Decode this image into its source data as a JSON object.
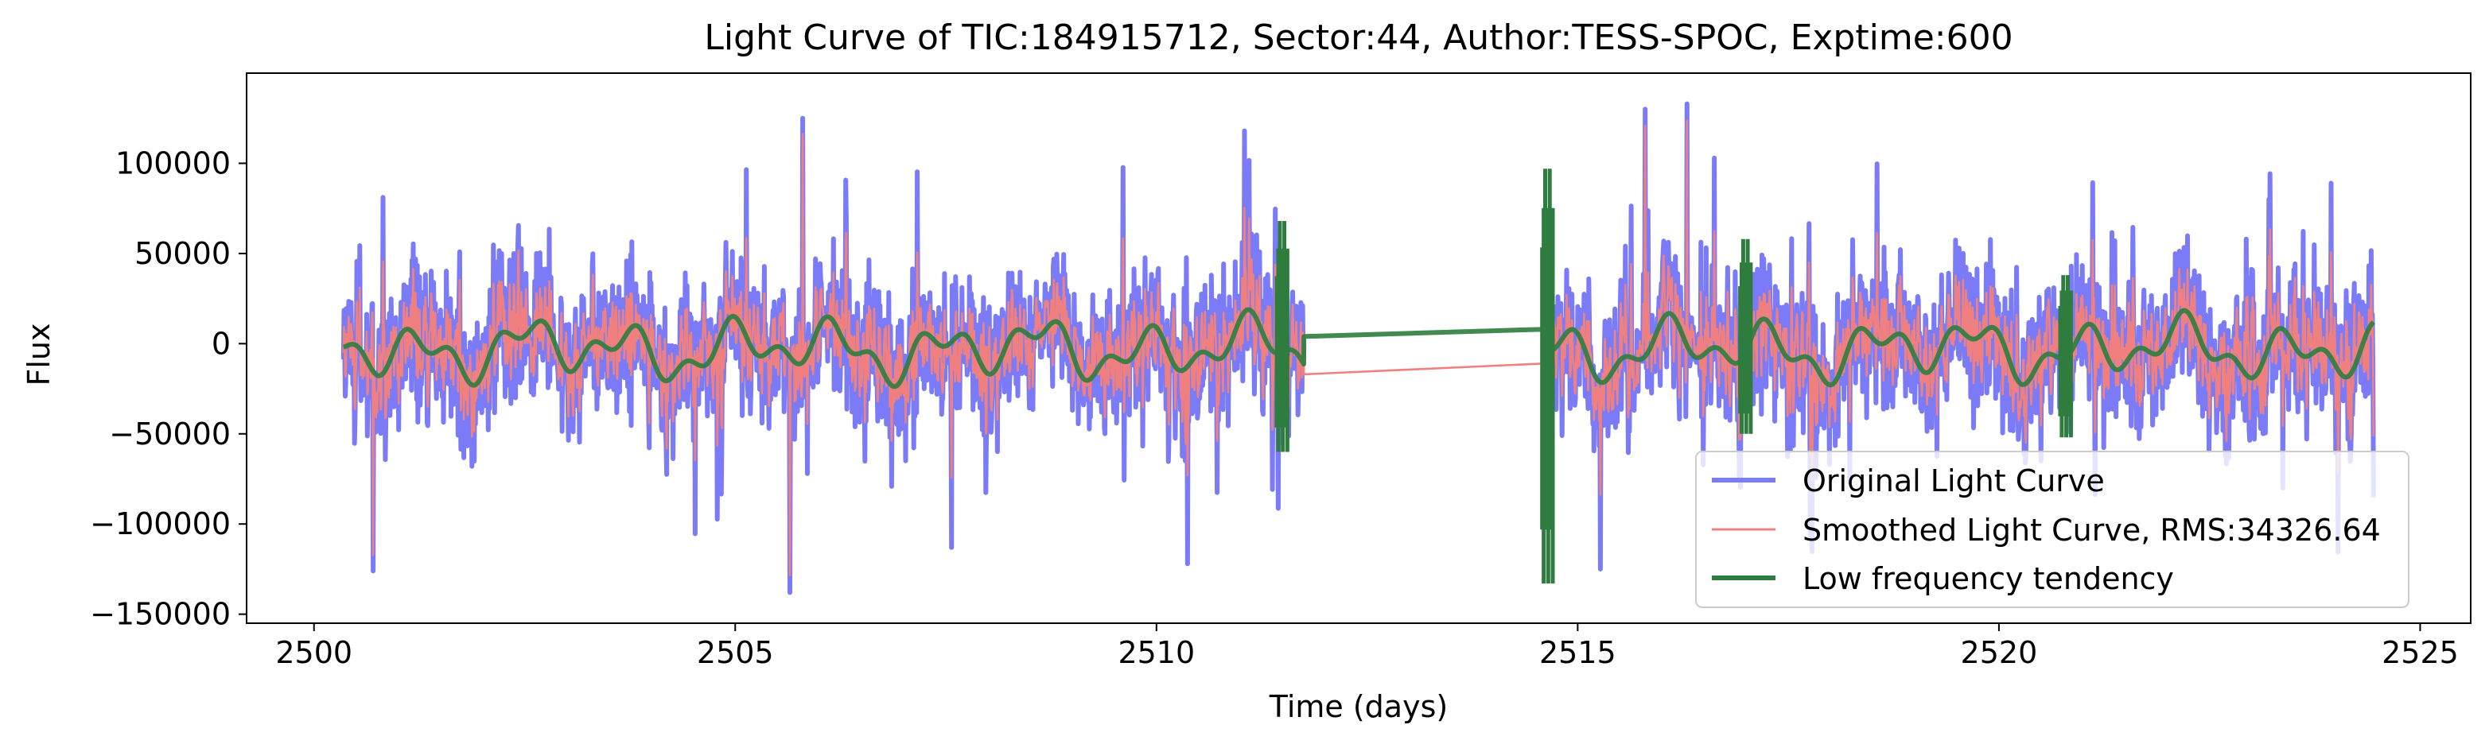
{
  "chart_data": {
    "type": "line",
    "title": "Light Curve of TIC:184915712, Sector:44, Author:TESS-SPOC, Exptime:600",
    "xlabel": "Time (days)",
    "ylabel": "Flux",
    "xlim": [
      2499.2,
      2525.6
    ],
    "ylim": [
      -155000,
      150000
    ],
    "x_ticks": [
      2500,
      2505,
      2510,
      2515,
      2520,
      2525
    ],
    "y_ticks": [
      -150000,
      -100000,
      -50000,
      0,
      50000,
      100000
    ],
    "x_tick_labels": [
      "2500",
      "2505",
      "2510",
      "2515",
      "2520",
      "2525"
    ],
    "y_tick_labels": [
      "−150000",
      "−100000",
      "−50000",
      "0",
      "50000",
      "100000"
    ],
    "grid": false,
    "legend_position": "lower-right",
    "segments": [
      [
        2500.35,
        2511.75
      ],
      [
        2514.6,
        2524.45
      ]
    ],
    "gap": [
      2511.75,
      2514.6
    ],
    "series": [
      {
        "name": "Original Light Curve",
        "color": "#7b7bf7",
        "style": "line",
        "typical_range": [
          -80000,
          80000
        ],
        "notable_points": [
          {
            "x": 2505.8,
            "y": 125000
          },
          {
            "x": 2505.65,
            "y": -138000
          },
          {
            "x": 2500.7,
            "y": -126000
          },
          {
            "x": 2516.3,
            "y": 133000
          },
          {
            "x": 2515.8,
            "y": 130000
          }
        ]
      },
      {
        "name": "Smoothed Light Curve, RMS:34326.64",
        "color": "#f08080",
        "style": "line",
        "rms": 34326.64,
        "typical_range": [
          -70000,
          75000
        ],
        "gap_bridge": [
          [
            2511.75,
            -17000
          ],
          [
            2514.6,
            -11000
          ]
        ]
      },
      {
        "name": "Low frequency tendency",
        "color": "#2e7d3e",
        "style": "line",
        "typical_range": [
          -30000,
          25000
        ],
        "gap_bridge": [
          [
            2511.75,
            4000
          ],
          [
            2514.6,
            8000
          ]
        ],
        "edge_spikes": [
          {
            "x": 2511.5,
            "ymin": -60000,
            "ymax": 68000
          },
          {
            "x": 2514.65,
            "ymin": -133000,
            "ymax": 97000
          },
          {
            "x": 2517.0,
            "ymin": -50000,
            "ymax": 58000
          },
          {
            "x": 2520.8,
            "ymin": -52000,
            "ymax": 38000
          }
        ]
      }
    ]
  }
}
